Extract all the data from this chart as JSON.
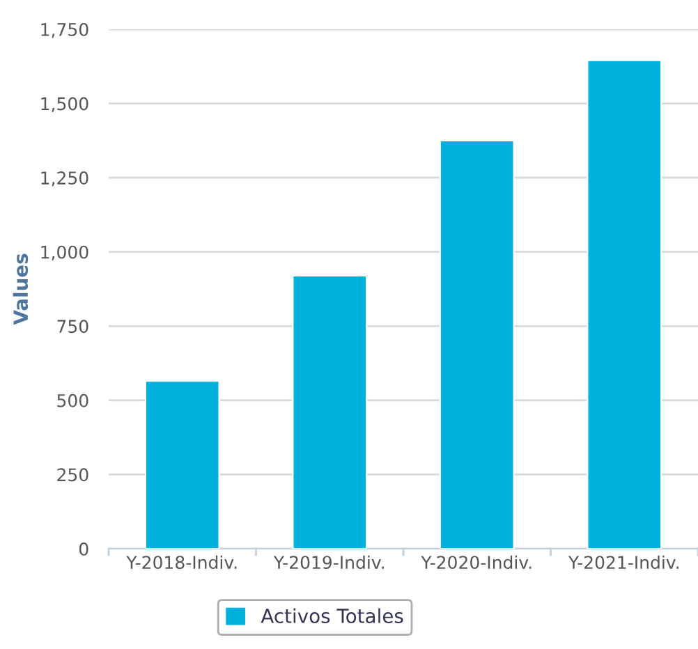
{
  "chart_data": {
    "type": "bar",
    "ylabel": "Values",
    "categories": [
      "Y-2018-Indiv.",
      "Y-2019-Indiv.",
      "Y-2020-Indiv.",
      "Y-2021-Indiv."
    ],
    "series": [
      {
        "name": "Activos Totales",
        "color": "#00b0dc",
        "values": [
          565,
          920,
          1375,
          1645
        ]
      }
    ],
    "ylim": [
      0,
      1750
    ],
    "yticks": [
      {
        "value": 0,
        "label": "0"
      },
      {
        "value": 250,
        "label": "250"
      },
      {
        "value": 500,
        "label": "500"
      },
      {
        "value": 750,
        "label": "750"
      },
      {
        "value": 1000,
        "label": "1,000"
      },
      {
        "value": 1250,
        "label": "1,250"
      },
      {
        "value": 1500,
        "label": "1,500"
      },
      {
        "value": 1750,
        "label": "1,750"
      }
    ],
    "grid": "y",
    "legend": "bottom"
  }
}
